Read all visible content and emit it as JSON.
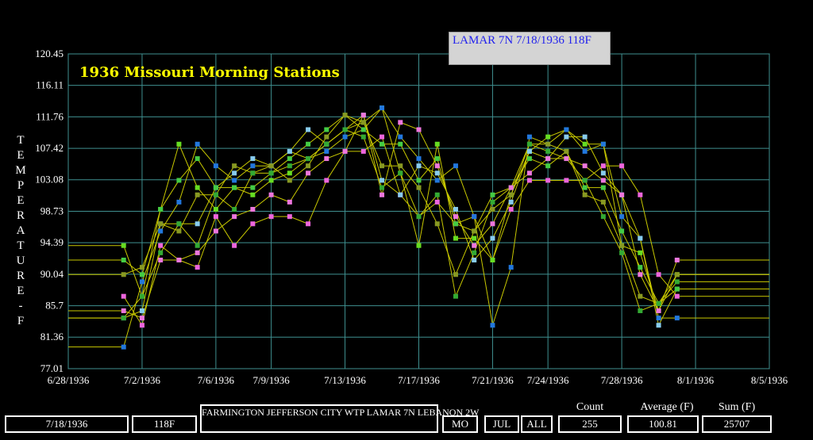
{
  "chart_data": {
    "type": "line",
    "title": "1936 Missouri Morning Stations",
    "ylabel": "TEMPERATURE - F",
    "xlabel": "",
    "ylim": [
      77.01,
      120.45
    ],
    "xlim": [
      "1936-06-28",
      "1936-08-05"
    ],
    "y_ticks": [
      "120.45",
      "116.11",
      "111.76",
      "107.42",
      "103.08",
      "98.73",
      "94.39",
      "90.04",
      "85.7",
      "81.36",
      "77.01"
    ],
    "x_ticks": [
      {
        "date": "1936-06-28",
        "label": "6/28/1936"
      },
      {
        "date": "1936-07-02",
        "label": "7/2/1936"
      },
      {
        "date": "1936-07-06",
        "label": "7/6/1936"
      },
      {
        "date": "1936-07-09",
        "label": "7/9/1936"
      },
      {
        "date": "1936-07-13",
        "label": "7/13/1936"
      },
      {
        "date": "1936-07-17",
        "label": "7/17/1936"
      },
      {
        "date": "1936-07-21",
        "label": "7/21/1936"
      },
      {
        "date": "1936-07-24",
        "label": "7/24/1936"
      },
      {
        "date": "1936-07-28",
        "label": "7/28/1936"
      },
      {
        "date": "1936-08-01",
        "label": "8/1/1936"
      },
      {
        "date": "1936-08-05",
        "label": "8/5/1936"
      }
    ],
    "grid": true,
    "line_color": "#c8c800",
    "x": [
      "1936-07-01",
      "1936-07-02",
      "1936-07-03",
      "1936-07-04",
      "1936-07-05",
      "1936-07-06",
      "1936-07-07",
      "1936-07-08",
      "1936-07-09",
      "1936-07-10",
      "1936-07-11",
      "1936-07-12",
      "1936-07-13",
      "1936-07-14",
      "1936-07-15",
      "1936-07-16",
      "1936-07-17",
      "1936-07-18",
      "1936-07-19",
      "1936-07-20",
      "1936-07-21",
      "1936-07-22",
      "1936-07-23",
      "1936-07-24",
      "1936-07-25",
      "1936-07-26",
      "1936-07-27",
      "1936-07-28",
      "1936-07-29",
      "1936-07-30",
      "1936-07-31"
    ],
    "series": [
      {
        "color": "#ee66dd",
        "pre": 85,
        "post": 87,
        "values": [
          87,
          83,
          94,
          92,
          91,
          98,
          94,
          97,
          98,
          98,
          97,
          103,
          107,
          107,
          109,
          101,
          98,
          100,
          97,
          98,
          92,
          99,
          103,
          103,
          103,
          103,
          105,
          105,
          101,
          90,
          87
        ]
      },
      {
        "color": "#66dd22",
        "pre": 94,
        "post": 90,
        "values": [
          94,
          87,
          99,
          108,
          102,
          99,
          102,
          101,
          103,
          104,
          106,
          108,
          110,
          111,
          113,
          104,
          94,
          108,
          95,
          95,
          92,
          101,
          107,
          109,
          110,
          108,
          108,
          94,
          93,
          85,
          90
        ]
      },
      {
        "color": "#2277dd",
        "pre": 80,
        "post": 84,
        "values": [
          80,
          89,
          96,
          100,
          108,
          105,
          103,
          105,
          105,
          107,
          106,
          107,
          109,
          110,
          113,
          109,
          106,
          103,
          105,
          98,
          83,
          91,
          109,
          108,
          110,
          107,
          108,
          98,
          95,
          84,
          84
        ]
      },
      {
        "color": "#88ccee",
        "pre": 84,
        "post": 88,
        "values": [
          84,
          85,
          97,
          97,
          97,
          102,
          104,
          106,
          105,
          107,
          110,
          108,
          110,
          112,
          103,
          101,
          105,
          104,
          99,
          92,
          95,
          100,
          107,
          106,
          109,
          109,
          104,
          101,
          95,
          83,
          88
        ]
      },
      {
        "color": "#44cc44",
        "pre": 92,
        "post": 88,
        "values": [
          92,
          90,
          99,
          103,
          106,
          102,
          102,
          102,
          104,
          106,
          108,
          110,
          112,
          110,
          108,
          108,
          103,
          106,
          97,
          96,
          101,
          102,
          106,
          105,
          107,
          102,
          102,
          96,
          91,
          86,
          88
        ]
      },
      {
        "color": "#889922",
        "pre": 90,
        "post": 90,
        "values": [
          90,
          91,
          97,
          96,
          101,
          101,
          105,
          104,
          105,
          103,
          105,
          109,
          112,
          111,
          105,
          105,
          102,
          97,
          90,
          96,
          99,
          101,
          108,
          108,
          107,
          101,
          100,
          94,
          87,
          86,
          90
        ]
      },
      {
        "color": "#33aa33",
        "pre": 84,
        "post": 89,
        "values": [
          84,
          87,
          93,
          97,
          94,
          101,
          99,
          104,
          104,
          105,
          106,
          108,
          110,
          109,
          102,
          104,
          98,
          101,
          87,
          93,
          100,
          102,
          108,
          107,
          106,
          103,
          98,
          93,
          85,
          86,
          89
        ]
      },
      {
        "color": "#ee77dd",
        "pre": 85,
        "post": 92,
        "values": [
          85,
          84,
          92,
          92,
          93,
          96,
          98,
          99,
          101,
          100,
          104,
          106,
          107,
          112,
          101,
          111,
          110,
          105,
          98,
          94,
          97,
          102,
          104,
          106,
          106,
          105,
          103,
          101,
          90,
          85,
          92
        ]
      }
    ]
  },
  "tooltip": {
    "text": "LAMAR 7N 7/18/1936 118F"
  },
  "summary": {
    "date": "7/18/1936",
    "temp": "118F",
    "stations": "FARMINGTON JEFFERSON CITY WTP LAMAR 7N LEBANON 2W",
    "state": "MO",
    "month": "JUL",
    "filter": "ALL",
    "count_label": "Count",
    "count": "255",
    "avg_label": "Average (F)",
    "avg": "100.81",
    "sum_label": "Sum (F)",
    "sum": "25707"
  }
}
